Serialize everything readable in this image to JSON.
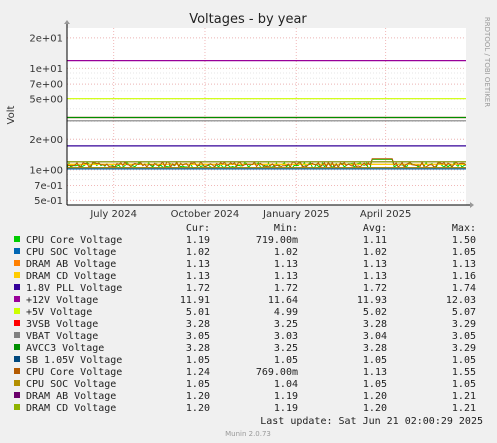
{
  "rrdtool_credit": "RRDTOOL / TOBI OETIKER",
  "chart_data": {
    "type": "line",
    "title": "Voltages - by year",
    "ylabel": "Volt",
    "yscale": "log",
    "ylim": [
      0.45,
      25
    ],
    "y_ticks": [
      {
        "v": 20,
        "label": "2e+01"
      },
      {
        "v": 10,
        "label": "1e+01"
      },
      {
        "v": 7,
        "label": "7e+00"
      },
      {
        "v": 5,
        "label": "5e+00"
      },
      {
        "v": 2,
        "label": "2e+00"
      },
      {
        "v": 1,
        "label": "1e+00"
      },
      {
        "v": 0.7,
        "label": "7e-01"
      },
      {
        "v": 0.5,
        "label": "5e-01"
      }
    ],
    "xlim": [
      "2024-05-15",
      "2025-06-21"
    ],
    "x_ticks": [
      {
        "date": "2024-07-01",
        "label": "July 2024"
      },
      {
        "date": "2024-10-01",
        "label": "October 2024"
      },
      {
        "date": "2025-01-01",
        "label": "January 2025"
      },
      {
        "date": "2025-04-01",
        "label": "April 2025"
      }
    ],
    "grid": true,
    "legend_headers": {
      "cur": "Cur:",
      "min": "Min:",
      "avg": "Avg:",
      "max": "Max:"
    },
    "series": [
      {
        "name": "CPU Core Voltage",
        "color": "#00cc00",
        "cur": "1.19",
        "min": "719.00m",
        "avg": "1.11",
        "max": "1.50",
        "value": 1.11
      },
      {
        "name": "CPU SOC Voltage",
        "color": "#0066b3",
        "cur": "1.02",
        "min": "1.02",
        "avg": "1.02",
        "max": "1.05",
        "value": 1.02
      },
      {
        "name": "DRAM AB Voltage",
        "color": "#ff8000",
        "cur": "1.13",
        "min": "1.13",
        "avg": "1.13",
        "max": "1.13",
        "value": 1.13
      },
      {
        "name": "DRAM CD Voltage",
        "color": "#ffcc00",
        "cur": "1.13",
        "min": "1.13",
        "avg": "1.13",
        "max": "1.16",
        "value": 1.13
      },
      {
        "name": "1.8V PLL Voltage",
        "color": "#330099",
        "cur": "1.72",
        "min": "1.72",
        "avg": "1.72",
        "max": "1.74",
        "value": 1.72
      },
      {
        "name": "+12V Voltage",
        "color": "#990099",
        "cur": "11.91",
        "min": "11.64",
        "avg": "11.93",
        "max": "12.03",
        "value": 11.93
      },
      {
        "name": "+5V Voltage",
        "color": "#ccff00",
        "cur": "5.01",
        "min": "4.99",
        "avg": "5.02",
        "max": "5.07",
        "value": 5.02
      },
      {
        "name": "3VSB Voltage",
        "color": "#ff0000",
        "cur": "3.28",
        "min": "3.25",
        "avg": "3.28",
        "max": "3.29",
        "value": 3.28
      },
      {
        "name": "VBAT Voltage",
        "color": "#808080",
        "cur": "3.05",
        "min": "3.03",
        "avg": "3.04",
        "max": "3.05",
        "value": 3.04
      },
      {
        "name": "AVCC3 Voltage",
        "color": "#008f00",
        "cur": "3.28",
        "min": "3.25",
        "avg": "3.28",
        "max": "3.29",
        "value": 3.28
      },
      {
        "name": "SB 1.05V Voltage",
        "color": "#00487d",
        "cur": "1.05",
        "min": "1.05",
        "avg": "1.05",
        "max": "1.05",
        "value": 1.05
      },
      {
        "name": "CPU Core Voltage",
        "color": "#b35a00",
        "cur": "1.24",
        "min": "769.00m",
        "avg": "1.13",
        "max": "1.55",
        "value": 1.13
      },
      {
        "name": "CPU SOC Voltage",
        "color": "#b38f00",
        "cur": "1.05",
        "min": "1.04",
        "avg": "1.05",
        "max": "1.05",
        "value": 1.05
      },
      {
        "name": "DRAM AB Voltage",
        "color": "#6b006b",
        "cur": "1.20",
        "min": "1.19",
        "avg": "1.20",
        "max": "1.21",
        "value": 1.2
      },
      {
        "name": "DRAM CD Voltage",
        "color": "#8fb300",
        "cur": "1.20",
        "min": "1.19",
        "avg": "1.20",
        "max": "1.21",
        "value": 1.2
      }
    ],
    "last_update": "Last update: Sat Jun 21 02:00:29 2025",
    "footer": "Munin 2.0.73"
  }
}
